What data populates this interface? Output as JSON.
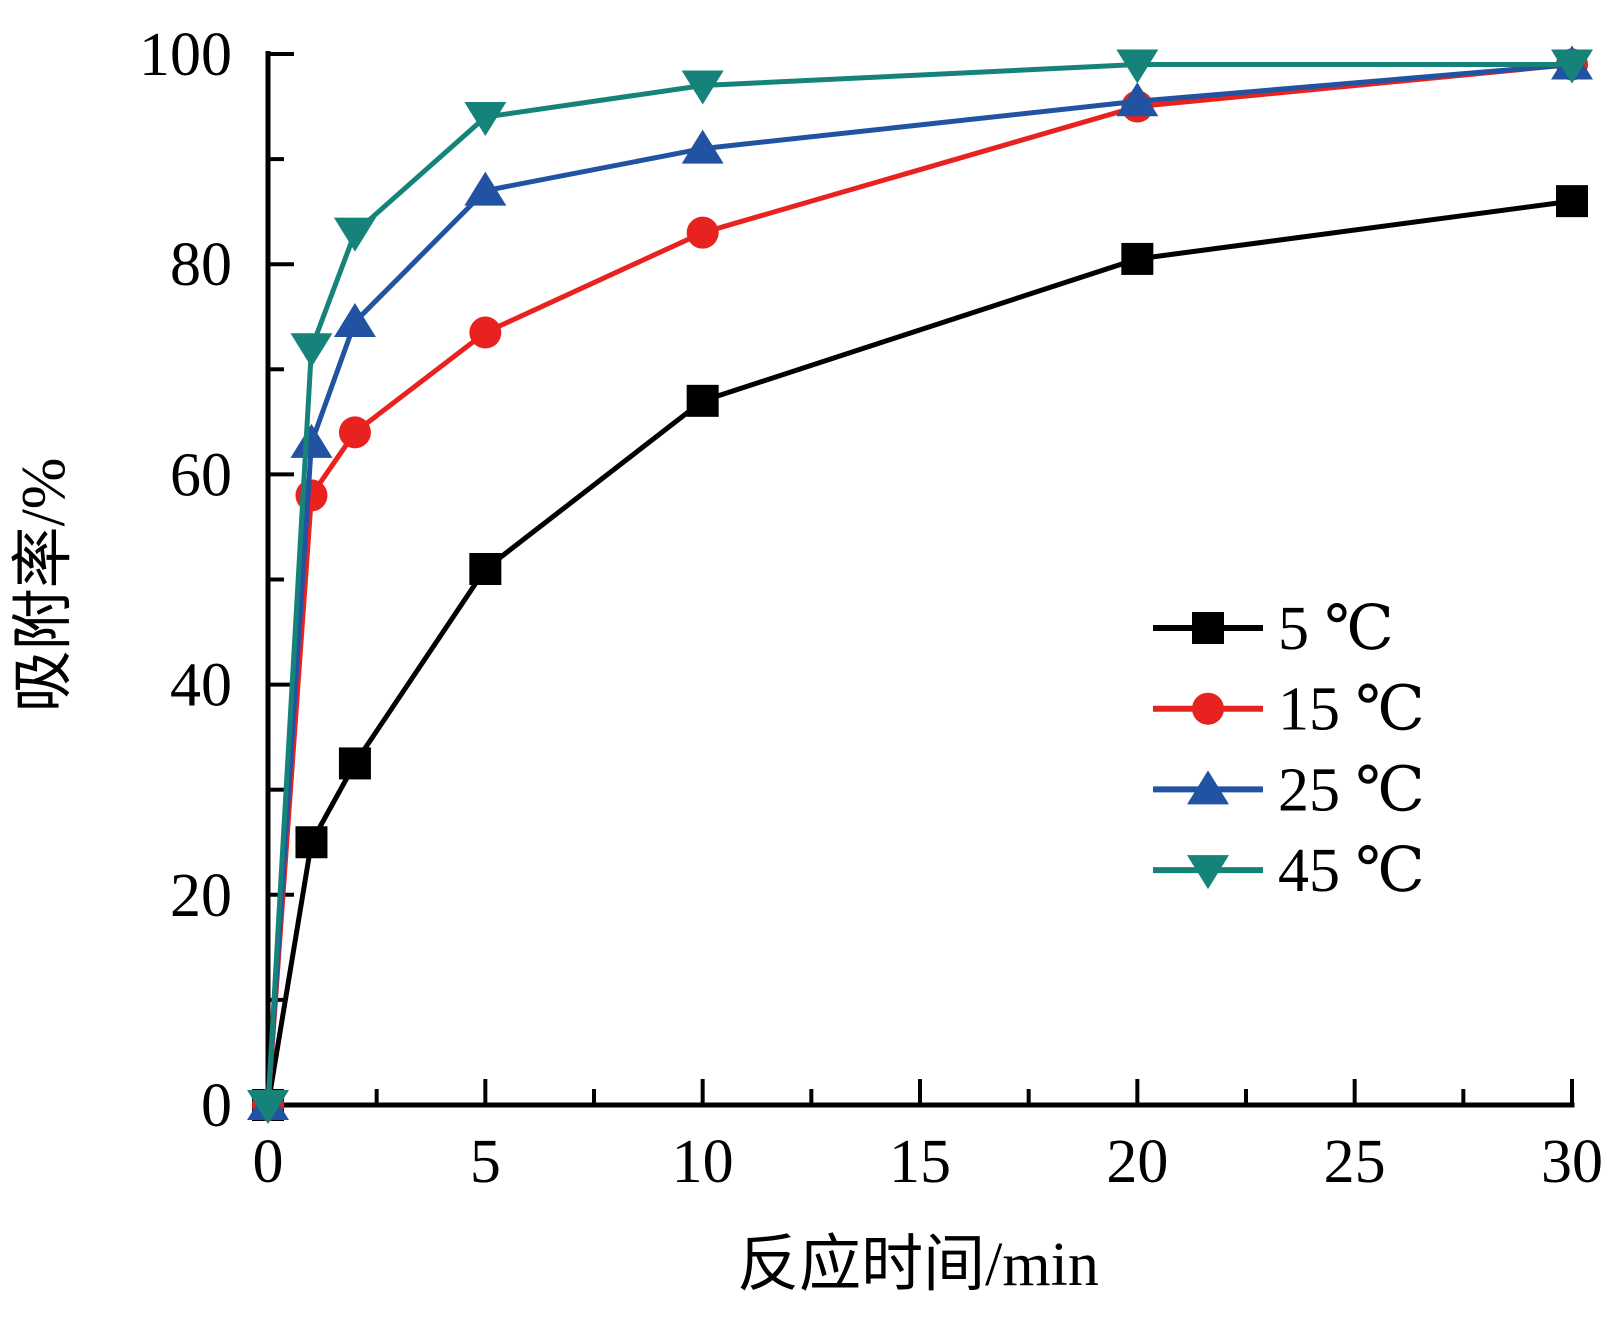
{
  "chart_data": {
    "type": "line",
    "title": "",
    "xlabel": "反应时间/min",
    "ylabel": "吸附率/%",
    "xlim": [
      0,
      30
    ],
    "ylim": [
      0,
      100
    ],
    "grid": false,
    "legend_position": "center-right",
    "x_major_ticks": [
      0,
      5,
      10,
      15,
      20,
      25,
      30
    ],
    "x_minor_ticks": [
      2.5,
      7.5,
      12.5,
      17.5,
      22.5,
      27.5
    ],
    "y_major_ticks": [
      0,
      20,
      40,
      60,
      80,
      100
    ],
    "y_minor_ticks": [
      10,
      30,
      50,
      70,
      90
    ],
    "x": [
      0,
      1,
      2,
      5,
      10,
      20,
      30
    ],
    "series": [
      {
        "name": "5 ℃",
        "marker": "square",
        "color": "#000000",
        "values": [
          0,
          25,
          32.5,
          51,
          67,
          80.5,
          86
        ]
      },
      {
        "name": "15 ℃",
        "marker": "circle",
        "color": "#e8231f",
        "values": [
          0,
          58,
          64,
          73.5,
          83,
          95,
          99
        ]
      },
      {
        "name": "25 ℃",
        "marker": "triangle-up",
        "color": "#2253a2",
        "values": [
          0,
          63,
          74.5,
          87,
          91,
          95.5,
          99
        ]
      },
      {
        "name": "45 ℃",
        "marker": "triangle-down",
        "color": "#16837a",
        "values": [
          0,
          72,
          83,
          94,
          97,
          99,
          99
        ]
      }
    ]
  }
}
